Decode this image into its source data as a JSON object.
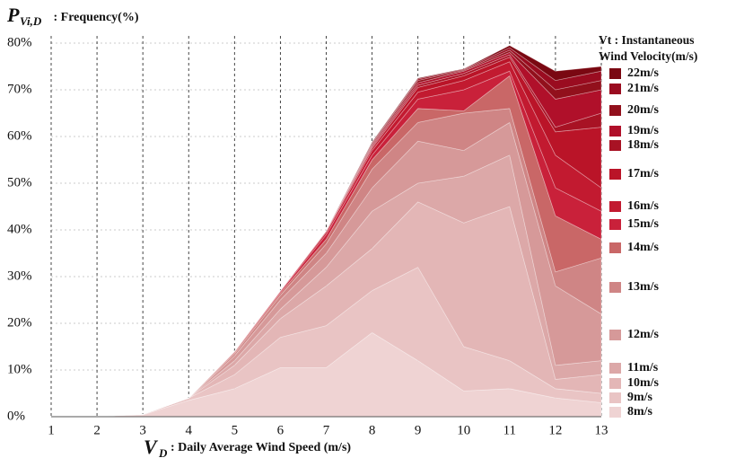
{
  "chart_data": {
    "type": "stacked_area",
    "y_label": {
      "symbol": "P",
      "subscript": "Vi,D",
      "text": " : Frequency(%)"
    },
    "x_label": {
      "symbol": "V",
      "subscript": "D",
      "text": ": Daily Average Wind Speed (m/s)"
    },
    "legend_title": [
      "Vt : Instantaneous",
      "Wind Velocity(m/s)"
    ],
    "x": [
      1,
      2,
      3,
      4,
      5,
      6,
      7,
      8,
      9,
      10,
      11,
      12,
      13
    ],
    "xlim": [
      1,
      13
    ],
    "xticks": [
      1,
      2,
      3,
      4,
      5,
      6,
      7,
      8,
      9,
      10,
      11,
      12,
      13
    ],
    "ylim": [
      0,
      80
    ],
    "yticks": [
      {
        "value": 0,
        "label": "0%"
      },
      {
        "value": 10,
        "label": "10%"
      },
      {
        "value": 20,
        "label": "20%"
      },
      {
        "value": 30,
        "label": "30%"
      },
      {
        "value": 40,
        "label": "40%"
      },
      {
        "value": 50,
        "label": "50%"
      },
      {
        "value": 60,
        "label": "60%"
      },
      {
        "value": 70,
        "label": "70%"
      },
      {
        "value": 80,
        "label": "80%"
      }
    ],
    "grid": true,
    "series": [
      {
        "name": "8m/s",
        "color": "#efd3d3",
        "values": [
          0,
          0.1,
          0.4,
          3.5,
          6,
          10.5,
          10.5,
          18,
          12,
          5.5,
          6,
          4,
          3
        ]
      },
      {
        "name": "9m/s",
        "color": "#e9c4c4",
        "values": [
          0,
          0,
          0.1,
          0.5,
          3,
          6.5,
          9,
          9,
          20,
          9.5,
          6,
          2,
          2
        ]
      },
      {
        "name": "10m/s",
        "color": "#e3b6b6",
        "values": [
          0,
          0,
          0,
          0,
          2,
          4,
          8.5,
          9,
          14,
          26.5,
          33,
          2,
          4
        ]
      },
      {
        "name": "11m/s",
        "color": "#dca8a8",
        "values": [
          0,
          0,
          0,
          0,
          1,
          2,
          4,
          8,
          4,
          10,
          11,
          3,
          3
        ]
      },
      {
        "name": "12m/s",
        "color": "#d69999",
        "values": [
          0,
          0,
          0,
          0,
          1,
          2,
          3,
          5,
          9,
          5.5,
          7,
          17,
          10
        ]
      },
      {
        "name": "13m/s",
        "color": "#cf8585",
        "values": [
          0,
          0,
          0,
          0,
          0.5,
          1,
          2,
          4,
          4,
          8,
          3,
          3,
          12
        ]
      },
      {
        "name": "14m/s",
        "color": "#c96767",
        "values": [
          0,
          0,
          0,
          0,
          0.3,
          0.5,
          1,
          2,
          3,
          0.5,
          7,
          12,
          4
        ]
      },
      {
        "name": "15m/s",
        "color": "#c9213a",
        "values": [
          0,
          0,
          0,
          0,
          0.2,
          0.3,
          1,
          1,
          2,
          4.5,
          1,
          6,
          6
        ]
      },
      {
        "name": "16m/s",
        "color": "#c21a30",
        "values": [
          0,
          0,
          0,
          0,
          0,
          0.2,
          0.5,
          1,
          1.5,
          2,
          2,
          7,
          5
        ]
      },
      {
        "name": "17m/s",
        "color": "#ba1428",
        "values": [
          0,
          0,
          0,
          0,
          0,
          0,
          0.3,
          0.5,
          1,
          1,
          1,
          5,
          13
        ]
      },
      {
        "name": "18m/s",
        "color": "#a81224",
        "values": [
          0,
          0,
          0,
          0,
          0,
          0,
          0,
          0.3,
          0.5,
          0.5,
          0.5,
          1,
          3
        ]
      },
      {
        "name": "19m/s",
        "color": "#b0102a",
        "values": [
          0,
          0,
          0,
          0,
          0,
          0,
          0,
          0.3,
          0.5,
          0.5,
          0.5,
          6,
          5
        ]
      },
      {
        "name": "20m/s",
        "color": "#92101c",
        "values": [
          0,
          0,
          0,
          0,
          0,
          0,
          0,
          0.3,
          0.5,
          0.2,
          0.5,
          2,
          2
        ]
      },
      {
        "name": "21m/s",
        "color": "#9a0c20",
        "values": [
          0,
          0,
          0,
          0,
          0,
          0,
          0,
          0.2,
          0.3,
          0.2,
          0.5,
          2,
          2
        ]
      },
      {
        "name": "22m/s",
        "color": "#7a0812",
        "values": [
          0,
          0,
          0,
          0,
          0,
          0,
          0,
          0.2,
          0.2,
          0.1,
          0.5,
          2,
          1
        ]
      }
    ]
  }
}
